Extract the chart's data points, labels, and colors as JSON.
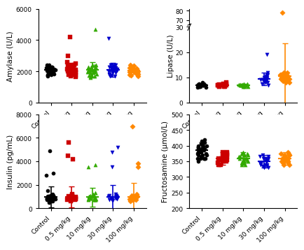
{
  "categories": [
    "Control",
    "0.5 mg/kg",
    "10 mg/kg",
    "30 mg/kg",
    "100 mg/kg"
  ],
  "colors": [
    "#000000",
    "#cc0000",
    "#33aa00",
    "#0000cc",
    "#ff8800"
  ],
  "markers": [
    "o",
    "s",
    "^",
    "v",
    "D"
  ],
  "amylase": {
    "ylabel": "Amylase (U/L)",
    "ylim": [
      0,
      6000
    ],
    "yticks": [
      0,
      2000,
      4000,
      6000
    ],
    "data": [
      [
        2200,
        2100,
        1900,
        2300,
        2050,
        1800,
        2400,
        2150,
        2000,
        1950,
        2250,
        2100,
        1850,
        2300,
        2000,
        1700,
        2050,
        1950,
        2200,
        2150,
        2300,
        1750,
        2400,
        2050,
        1900,
        2150,
        2200,
        1800,
        2100,
        2050
      ],
      [
        2200,
        1800,
        3000,
        2100,
        2500,
        1900,
        2300,
        2000,
        2200,
        1700,
        2100,
        2400,
        2600,
        1950,
        2150,
        2050,
        2300,
        1850,
        2000,
        2250,
        1750,
        2400,
        1900,
        2100,
        2200,
        1650,
        2350,
        2050,
        2150,
        4200
      ],
      [
        2100,
        1600,
        4700,
        2200,
        1900,
        2400,
        1750,
        2050,
        2300,
        1850,
        2150,
        2000,
        1950,
        2250,
        2100,
        1700,
        2350,
        2050,
        1800,
        2200,
        2400,
        1900,
        2150,
        2050,
        1650,
        2300,
        1950,
        2100,
        2250,
        1750
      ],
      [
        2300,
        1700,
        2200,
        2050,
        2400,
        1900,
        2100,
        2250,
        2000,
        1850,
        4100,
        2350,
        1750,
        2150,
        2050,
        2300,
        1950,
        2100,
        2400,
        1800,
        2200,
        2050,
        2150,
        1900,
        2300,
        2000,
        2250,
        1700,
        2100,
        2350
      ],
      [
        2200,
        1800,
        2100,
        1950,
        2300,
        2050,
        2150,
        1900,
        2250,
        2000,
        2100,
        1750,
        2400,
        2050,
        1850,
        2200,
        2350,
        1900,
        2100,
        2000,
        1700,
        2250,
        2150,
        2050,
        2300,
        1800,
        2000,
        2100,
        1950,
        2200
      ]
    ],
    "means": [
      2100,
      2100,
      2100,
      2100,
      2050
    ],
    "sds": [
      220,
      400,
      500,
      450,
      200
    ]
  },
  "lipase": {
    "ylabel": "Lipase (U/L)",
    "ylim_low": [
      0,
      30
    ],
    "ylim_high": [
      65,
      82
    ],
    "yticks_low": [
      0,
      10,
      20,
      30
    ],
    "yticks_high": [
      70,
      80
    ],
    "data": [
      [
        7,
        6.5,
        7.5,
        6,
        8,
        7,
        6.8,
        7.2,
        6.5,
        7,
        6.5,
        7.5,
        7,
        6,
        7.2
      ],
      [
        7,
        6.5,
        7.5,
        8,
        6.8,
        7.2,
        7,
        6.5,
        7,
        7.5,
        6.8,
        7.2,
        6.5,
        7,
        6.5
      ],
      [
        7,
        6.5,
        7.2,
        7.5,
        6.8,
        7,
        6.5,
        7.5,
        7,
        7.2,
        6.8,
        7,
        7.2,
        6.5,
        7
      ],
      [
        8,
        7,
        9,
        10,
        11,
        9.5,
        8.5,
        10.5,
        9,
        7.5,
        19,
        10,
        8,
        12,
        8.5,
        9,
        11,
        8,
        10,
        9.5
      ],
      [
        11,
        9,
        10.5,
        8,
        12,
        9.5,
        11.5,
        10,
        9,
        8.5,
        10,
        9.5,
        11,
        8,
        10.5,
        9,
        12,
        10,
        78,
        11
      ]
    ],
    "means": [
      7,
      7,
      7,
      9.5,
      10.5
    ],
    "sds": [
      0.5,
      0.5,
      0.5,
      2.5,
      13
    ]
  },
  "insulin": {
    "ylabel": "Insulin (pg/mL)",
    "ylim": [
      0,
      8000
    ],
    "yticks": [
      0,
      2000,
      4000,
      6000,
      8000
    ],
    "data": [
      [
        900,
        700,
        1200,
        500,
        800,
        1100,
        600,
        950,
        750,
        1050,
        4900,
        3000,
        2800,
        1500,
        850,
        700,
        950,
        600,
        1100,
        800,
        750,
        900,
        1050,
        650,
        1000,
        800,
        700,
        850,
        900,
        1100
      ],
      [
        1000,
        800,
        900,
        5600,
        4500,
        4200,
        700,
        1100,
        850,
        1200,
        700,
        900,
        750,
        1050,
        800,
        600,
        950,
        700,
        1000,
        850
      ],
      [
        900,
        800,
        1000,
        1100,
        700,
        850,
        3700,
        3500,
        1300,
        1100,
        950,
        750,
        1200,
        800,
        900,
        700,
        1050,
        850,
        1000,
        750
      ],
      [
        5200,
        4800,
        3500,
        1000,
        900,
        800,
        1100,
        700,
        850,
        1200,
        750,
        950,
        650,
        1050,
        800,
        900,
        700,
        1000,
        850,
        1100
      ],
      [
        7000,
        3800,
        3500,
        900,
        800,
        1000,
        1100,
        700,
        850,
        750,
        1200,
        950,
        650,
        1050,
        800,
        900,
        700,
        1000,
        850,
        600
      ]
    ],
    "means": [
      950,
      950,
      950,
      950,
      950
    ],
    "sds": [
      900,
      900,
      800,
      1000,
      1200
    ]
  },
  "fructosamine": {
    "ylabel": "Fructosamine (μmol/L)",
    "ylim": [
      200,
      500
    ],
    "yticks": [
      200,
      250,
      300,
      350,
      400,
      450,
      500
    ],
    "data": [
      [
        380,
        360,
        400,
        370,
        390,
        410,
        350,
        420,
        360,
        380,
        395,
        370,
        405,
        360,
        390,
        375,
        400,
        385,
        365,
        395,
        410,
        370,
        380,
        360,
        400,
        390,
        375,
        415,
        360,
        380
      ],
      [
        340,
        360,
        370,
        350,
        380,
        360,
        340,
        375,
        355,
        365,
        345,
        370,
        360,
        350,
        380,
        355,
        340,
        365,
        375,
        350
      ],
      [
        360,
        340,
        380,
        350,
        370,
        355,
        365,
        345,
        375,
        360,
        350,
        370,
        340,
        365,
        355,
        375,
        345,
        360,
        370,
        350
      ],
      [
        350,
        330,
        370,
        340,
        360,
        345,
        355,
        335,
        365,
        350,
        340,
        360,
        330,
        355,
        345,
        365,
        335,
        350,
        360,
        340
      ],
      [
        360,
        340,
        370,
        350,
        380,
        355,
        365,
        345,
        375,
        360,
        350,
        370,
        340,
        365,
        355,
        375,
        345,
        360,
        370,
        350
      ]
    ],
    "means": [
      385,
      360,
      360,
      350,
      360
    ],
    "sds": [
      25,
      20,
      20,
      20,
      20
    ]
  }
}
